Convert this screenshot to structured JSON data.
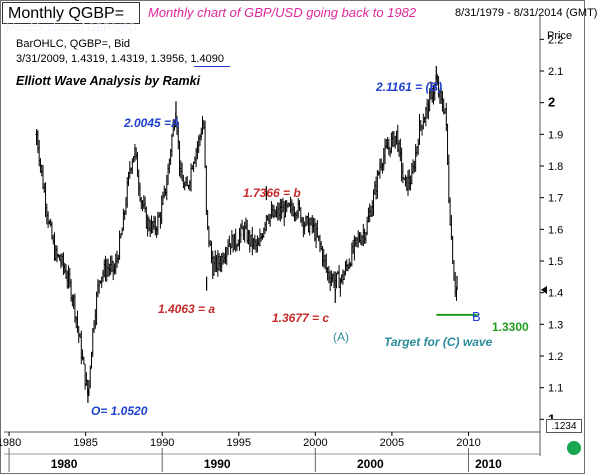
{
  "header": {
    "title": "Monthly QGBP=",
    "subtitle": "Monthly chart of GBP/USD going back to 1982",
    "date_range": "8/31/1979 - 8/31/2014 (GMT)",
    "ohlc_line1": "BarOHLC, QGBP=, Bid",
    "ohlc_line2": "3/31/2009, 1.4319, 1.4319, 1.3956, 1.4090",
    "ghost_text": "Monthly chart of GBP/USD"
  },
  "price_label": "Price",
  "price_readout": ".1234",
  "chart_title": "Elliott Wave Analysis by Ramki",
  "colors": {
    "bars": "#000000",
    "blue_annotation": "#1f3fcf",
    "red_annotation": "#c62a2a",
    "teal_annotation": "#2a8c9a",
    "target_line": "#1f9e1f",
    "status": "#17a84f"
  },
  "annotations": {
    "high_b": "2.1161 = (B)",
    "high_a": "2.0045 =A",
    "peak_b": "1.7366 = b",
    "low_a": "1.4063 = a",
    "low_c": "1.3677 = c",
    "wave_a": "(A)",
    "low_o": "O= 1.0520",
    "label_b": "B",
    "target_value": "1.3300",
    "target_text": "Target for (C) wave"
  },
  "chart_data": {
    "type": "ohlc",
    "title": "Monthly chart of GBP/USD going back to 1982",
    "symbol": "QGBP=",
    "x": [
      1981.8,
      1982.2,
      1982.6,
      1983.0,
      1983.4,
      1983.8,
      1984.2,
      1984.6,
      1985.0,
      1985.15,
      1985.5,
      1985.9,
      1986.4,
      1986.9,
      1987.4,
      1987.9,
      1988.2,
      1988.6,
      1989.0,
      1989.5,
      1989.9,
      1990.3,
      1990.7,
      1990.9,
      1991.2,
      1991.6,
      1992.0,
      1992.4,
      1992.7,
      1992.9,
      1993.3,
      1993.8,
      1994.3,
      1994.8,
      1995.3,
      1995.8,
      1996.3,
      1996.8,
      1997.3,
      1997.8,
      1998.3,
      1998.8,
      1999.3,
      1999.8,
      2000.3,
      2000.8,
      2001.3,
      2001.7,
      2002.2,
      2002.7,
      2003.3,
      2003.8,
      2004.3,
      2004.8,
      2005.3,
      2005.8,
      2006.3,
      2006.8,
      2007.3,
      2007.6,
      2007.9,
      2008.2,
      2008.5,
      2008.7,
      2008.9,
      2009.1,
      2009.25
    ],
    "y": [
      1.9,
      1.75,
      1.62,
      1.52,
      1.5,
      1.45,
      1.38,
      1.25,
      1.12,
      1.08,
      1.3,
      1.45,
      1.48,
      1.47,
      1.6,
      1.8,
      1.85,
      1.7,
      1.62,
      1.6,
      1.65,
      1.75,
      1.92,
      1.98,
      1.76,
      1.72,
      1.82,
      1.88,
      1.95,
      1.62,
      1.48,
      1.5,
      1.56,
      1.56,
      1.6,
      1.56,
      1.54,
      1.65,
      1.64,
      1.66,
      1.66,
      1.67,
      1.62,
      1.61,
      1.55,
      1.46,
      1.44,
      1.44,
      1.5,
      1.56,
      1.6,
      1.7,
      1.82,
      1.86,
      1.9,
      1.74,
      1.76,
      1.92,
      1.98,
      2.03,
      2.06,
      2.0,
      1.98,
      1.72,
      1.56,
      1.42,
      1.41
    ],
    "points": [
      {
        "x": 1981.8,
        "y": 1.91,
        "label": ""
      },
      {
        "x": 1985.15,
        "y": 1.052,
        "label": "O= 1.0520"
      },
      {
        "x": 1990.9,
        "y": 2.0045,
        "label": "2.0045 =A"
      },
      {
        "x": 1992.9,
        "y": 1.4063,
        "label": "1.4063 = a"
      },
      {
        "x": 1996.8,
        "y": 1.7366,
        "label": "1.7366 = b"
      },
      {
        "x": 2001.3,
        "y": 1.3677,
        "label": "1.3677 = c"
      },
      {
        "x": 2007.9,
        "y": 2.1161,
        "label": "2.1161 = (B)"
      },
      {
        "x": 2009.25,
        "y": 1.409,
        "label": ""
      }
    ],
    "target": {
      "value": 1.33,
      "label": "Target for (C) wave"
    },
    "x_ticks": [
      "1980",
      "1985",
      "1990",
      "1995",
      "2000",
      "2005",
      "2010"
    ],
    "x_tick_values": [
      1980,
      1985,
      1990,
      1995,
      2000,
      2005,
      2010
    ],
    "decades": [
      "1980",
      "1990",
      "2000",
      "2010"
    ],
    "decade_values": [
      1980,
      1990,
      2000,
      2010
    ],
    "y_ticks": [
      "2.2",
      "2.1",
      "2",
      "1.9",
      "1.8",
      "1.7",
      "1.6",
      "1.5",
      "1.4",
      "1.3",
      "1.2",
      "1.1",
      "1"
    ],
    "y_tick_values": [
      2.2,
      2.1,
      2.0,
      1.9,
      1.8,
      1.7,
      1.6,
      1.5,
      1.4,
      1.3,
      1.2,
      1.1,
      1.0
    ],
    "last_price": 1.409,
    "xlim": [
      1979.67,
      2014.67
    ],
    "ylim": [
      0.96,
      2.28
    ],
    "grid": false
  }
}
